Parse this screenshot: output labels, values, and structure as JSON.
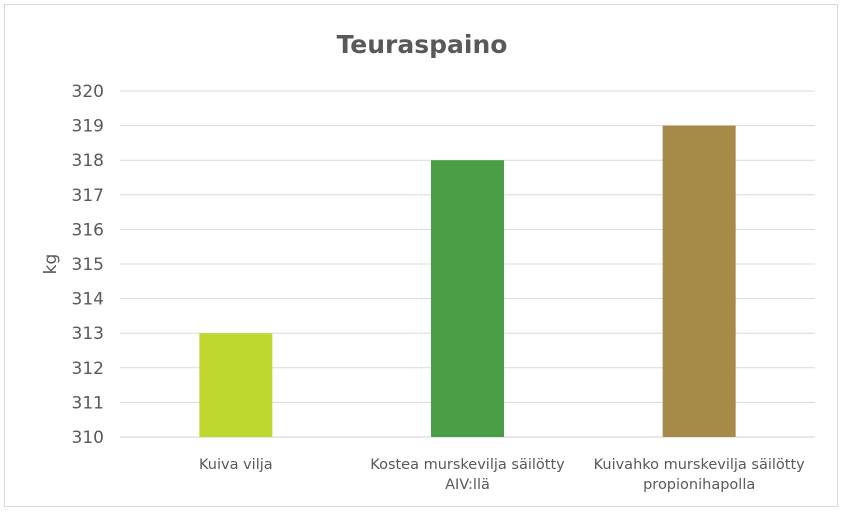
{
  "chart_data": {
    "type": "bar",
    "title": "Teuraspaino",
    "xlabel": "",
    "ylabel": "kg",
    "ylim": [
      310,
      320
    ],
    "yticks": [
      310,
      311,
      312,
      313,
      314,
      315,
      316,
      317,
      318,
      319,
      320
    ],
    "grid": true,
    "categories": [
      [
        "Kuiva vilja"
      ],
      [
        "Kostea murskevilja säilötty",
        "AIV:llä"
      ],
      [
        "Kuivahko murskevilja säilötty",
        "propionihapolla"
      ]
    ],
    "values": [
      313,
      318,
      319
    ],
    "colors": [
      "#c0d730",
      "#4a9e46",
      "#a68a48"
    ]
  }
}
